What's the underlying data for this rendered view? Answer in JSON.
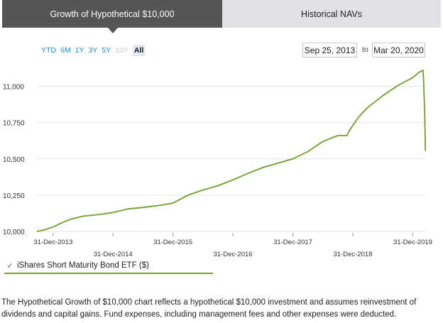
{
  "tabs": {
    "active_label": "Growth of Hypothetical $10,000",
    "inactive_label": "Historical NAVs"
  },
  "range_buttons": [
    "YTD",
    "6M",
    "1Y",
    "3Y",
    "5Y",
    "10Y",
    "All"
  ],
  "range_selected": "All",
  "range_disabled": [
    "10Y"
  ],
  "date_range": {
    "start": "Sep 25, 2013",
    "separator": "to",
    "end": "Mar 20, 2020"
  },
  "legend": {
    "check": "✓",
    "label": "iShares Short Maturity Bond ETF ($)"
  },
  "footnote": "The Hypothetical Growth of $10,000 chart reflects a hypothetical $10,000 investment and assumes reinvestment of dividends and capital gains. Fund expenses, including management fees and other expenses were deducted.",
  "colors": {
    "line": "#6f9e2a",
    "tab_active_bg": "#555555",
    "tab_inactive_bg": "#e1e1e6",
    "link": "#1f8fd6"
  },
  "chart_data": {
    "type": "line",
    "title": "",
    "xlabel": "",
    "ylabel": "",
    "ylim": [
      9990,
      11125
    ],
    "xlim": [
      2013.73,
      2020.22
    ],
    "y_ticks": [
      {
        "value": 10000,
        "label": "10,000"
      },
      {
        "value": 10250,
        "label": "10,250"
      },
      {
        "value": 10500,
        "label": "10,500"
      },
      {
        "value": 10750,
        "label": "10,750"
      },
      {
        "value": 11000,
        "label": "11,000"
      }
    ],
    "x_ticks": [
      {
        "value": 2014.0,
        "label": "31-Dec-2013",
        "row": "upper"
      },
      {
        "value": 2015.0,
        "label": "31-Dec-2014",
        "row": "lower"
      },
      {
        "value": 2016.0,
        "label": "31-Dec-2015",
        "row": "upper"
      },
      {
        "value": 2017.0,
        "label": "31-Dec-2016",
        "row": "lower"
      },
      {
        "value": 2018.0,
        "label": "31-Dec-2017",
        "row": "upper"
      },
      {
        "value": 2019.0,
        "label": "31-Dec-2018",
        "row": "lower"
      },
      {
        "value": 2020.0,
        "label": "31-Dec-2019",
        "row": "upper"
      }
    ],
    "series": [
      {
        "name": "iShares Short Maturity Bond ETF ($)",
        "x": [
          2013.73,
          2013.85,
          2014.0,
          2014.15,
          2014.3,
          2014.5,
          2014.75,
          2015.0,
          2015.25,
          2015.5,
          2015.75,
          2016.0,
          2016.25,
          2016.5,
          2016.75,
          2017.0,
          2017.25,
          2017.5,
          2017.75,
          2018.0,
          2018.25,
          2018.5,
          2018.75,
          2018.9,
          2018.95,
          2019.0,
          2019.1,
          2019.25,
          2019.5,
          2019.75,
          2020.0,
          2020.1,
          2020.17,
          2020.18,
          2020.2,
          2020.21
        ],
        "y": [
          10000,
          10010,
          10030,
          10060,
          10085,
          10105,
          10115,
          10130,
          10155,
          10165,
          10178,
          10195,
          10250,
          10285,
          10315,
          10355,
          10400,
          10440,
          10470,
          10500,
          10550,
          10620,
          10660,
          10660,
          10700,
          10730,
          10790,
          10855,
          10935,
          11005,
          11060,
          11095,
          11110,
          11050,
          10800,
          10555
        ]
      }
    ]
  }
}
